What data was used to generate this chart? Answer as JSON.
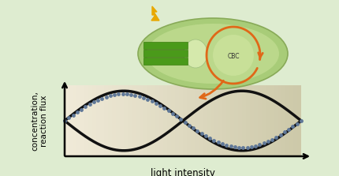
{
  "bg_color": "#deecd0",
  "graph_bg_left": "#f0ead8",
  "graph_bg_right": "#ccc8a8",
  "ylabel": "concentration,\nreaction flux",
  "xlabel": "light intensity",
  "ylabel_fontsize": 7.5,
  "xlabel_fontsize": 8.5,
  "arrow_color": "#e06818",
  "lightning_color": "#e8a800",
  "solid_line_color": "#111111",
  "dotted_line_color": "#607898",
  "linewidth_solid": 2.5,
  "linewidth_dotted": 2.8,
  "cell_outer_color": "#a8cc78",
  "cell_inner_color": "#c0dc90",
  "thylakoid_color": "#4a9a1a",
  "stroma_color": "#d0e8a0",
  "cbc_color": "#c8e098"
}
